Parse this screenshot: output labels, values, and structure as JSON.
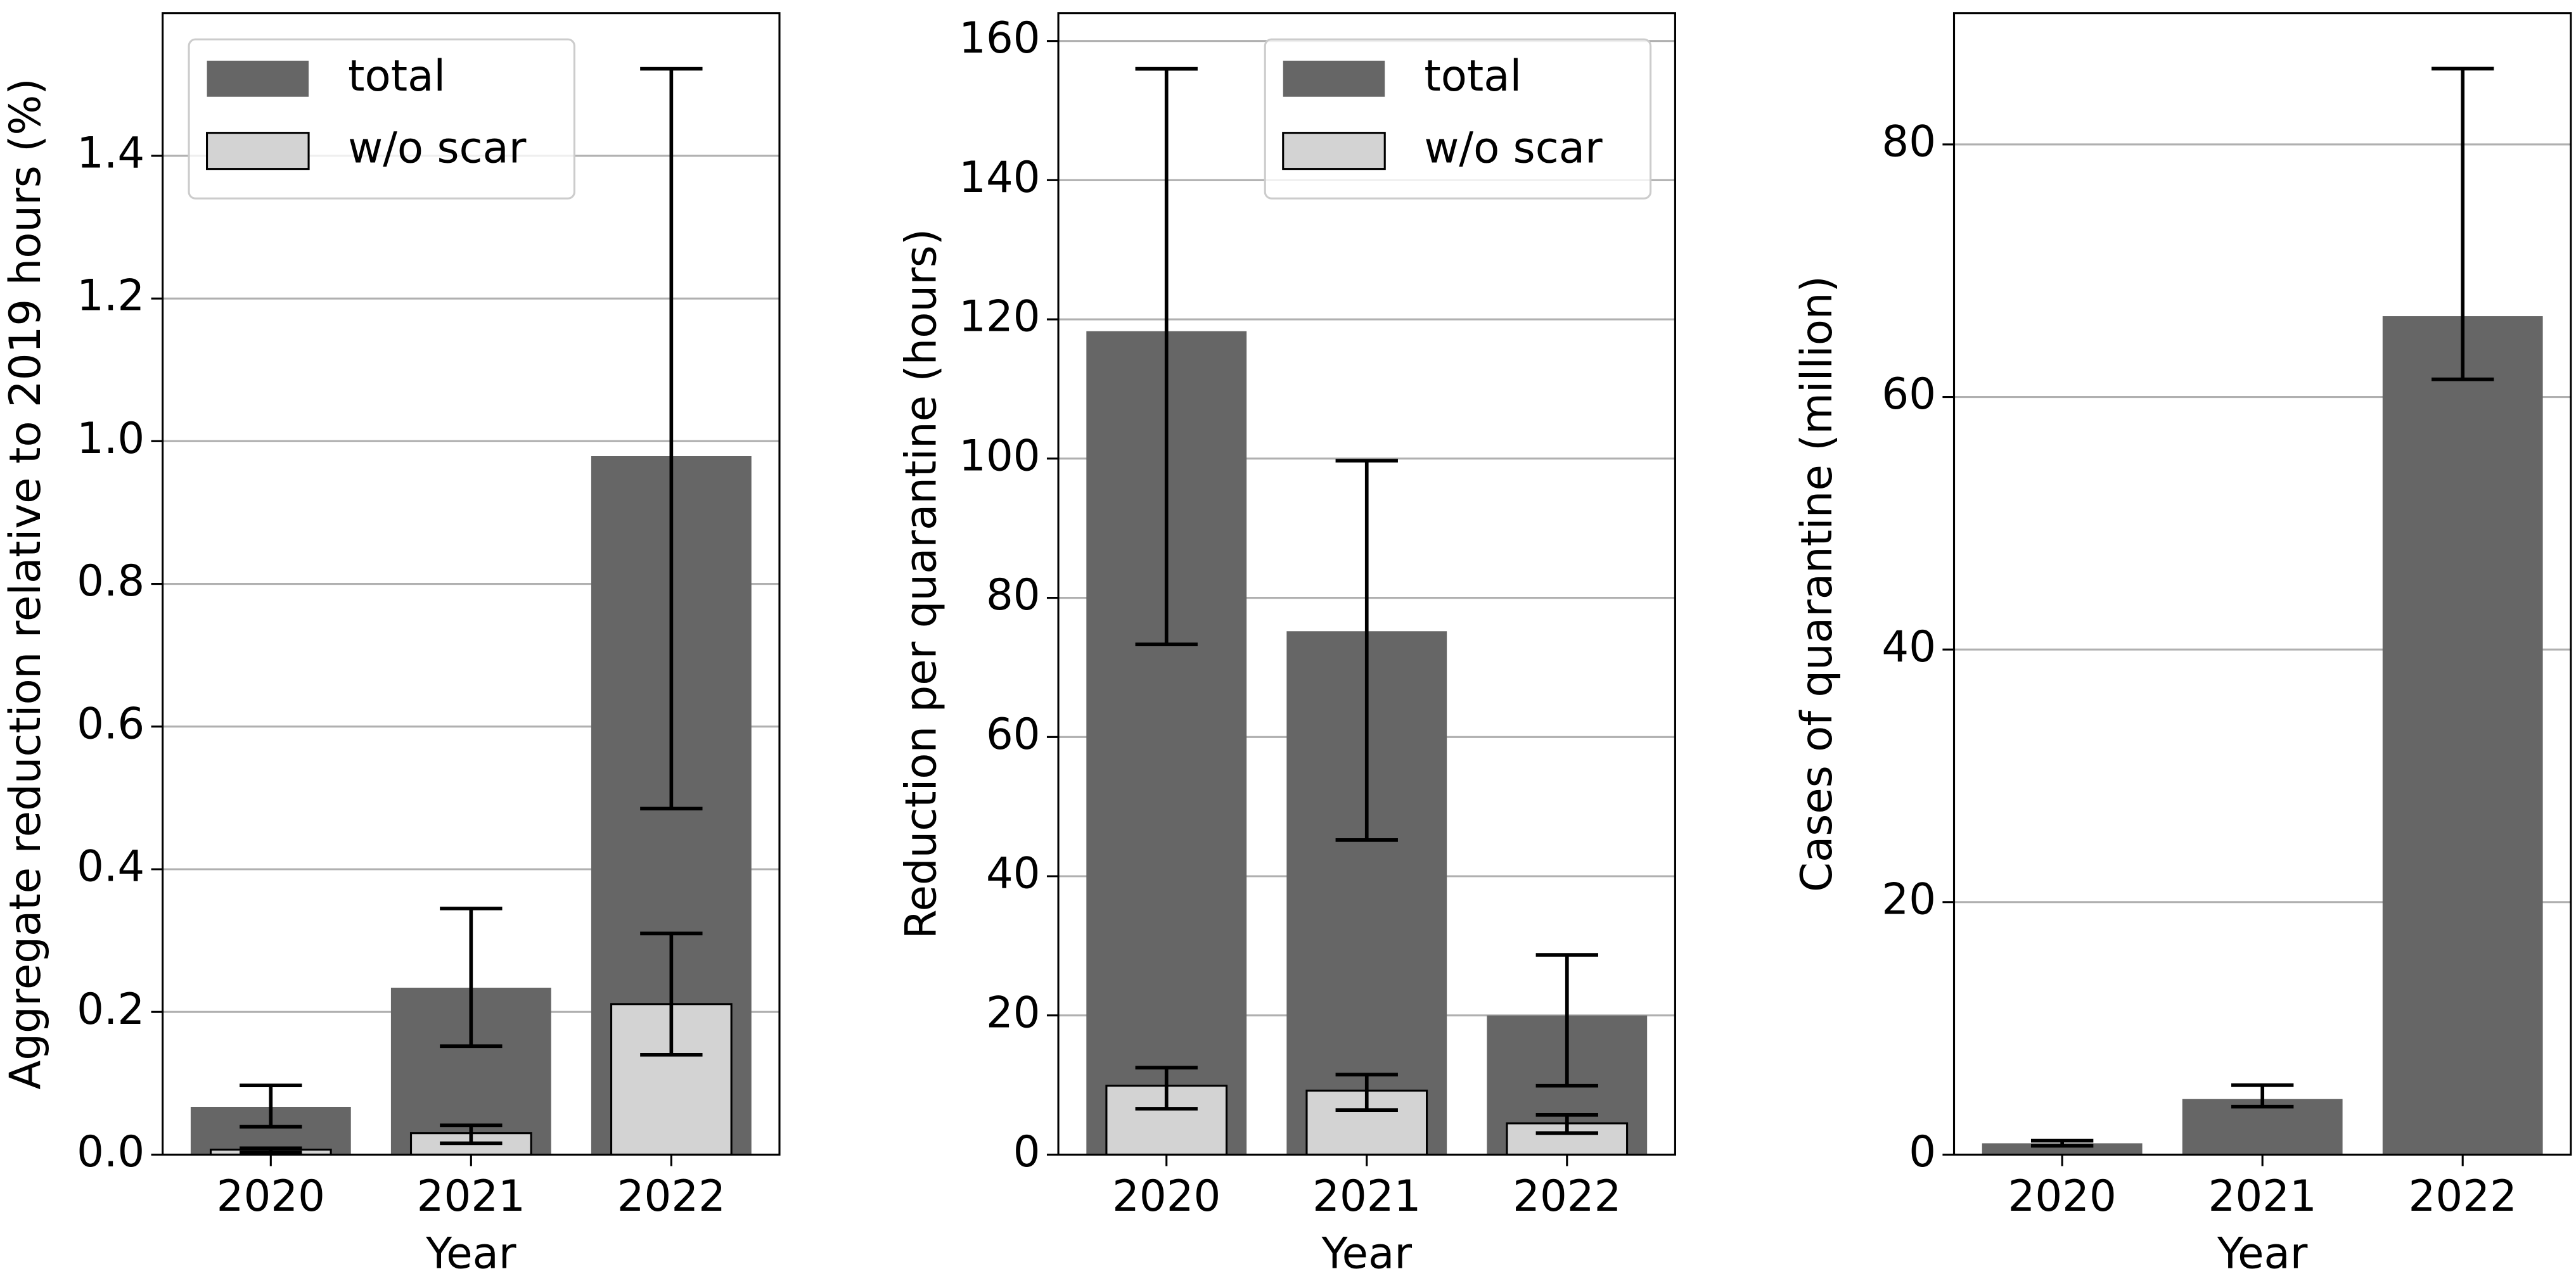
{
  "chart_data": [
    {
      "type": "bar",
      "x_label": "Year",
      "y_label": "Aggregate reduction relative to 2019 hours (%)",
      "categories": [
        "2020",
        "2021",
        "2022"
      ],
      "series": [
        {
          "name": "total",
          "color": "#666666",
          "values": [
            0.067,
            0.234,
            0.979
          ],
          "ci_low": [
            0.039,
            0.152,
            0.485
          ],
          "ci_high": [
            0.097,
            0.345,
            1.522
          ]
        },
        {
          "name": "w/o scar",
          "color": "#d3d3d3",
          "values": [
            0.007,
            0.03,
            0.211
          ],
          "ci_low": [
            0.003,
            0.016,
            0.14
          ],
          "ci_high": [
            0.009,
            0.041,
            0.31
          ]
        }
      ],
      "ylim": [
        0,
        1.6
      ],
      "yticks": [
        {
          "value": 0,
          "label": "0.0"
        },
        0.2,
        0.4,
        0.6,
        0.8,
        {
          "value": 1,
          "label": "1.0"
        },
        1.2,
        1.4
      ],
      "grid": true,
      "legend": "upper left"
    },
    {
      "type": "bar",
      "x_label": "Year",
      "y_label": "Reduction per quarantine (hours)",
      "categories": [
        "2020",
        "2021",
        "2022"
      ],
      "series": [
        {
          "name": "total",
          "color": "#666666",
          "values": [
            118.3,
            75.2,
            20.0
          ],
          "ci_low": [
            73.3,
            45.2,
            9.9
          ],
          "ci_high": [
            156,
            99.7,
            28.7
          ]
        },
        {
          "name": "w/o scar",
          "color": "#d3d3d3",
          "values": [
            9.9,
            9.2,
            4.5
          ],
          "ci_low": [
            6.6,
            6.4,
            3.1
          ],
          "ci_high": [
            12.5,
            11.5,
            5.7
          ]
        }
      ],
      "ylim": [
        0,
        164
      ],
      "yticks": [
        0,
        20,
        40,
        60,
        80,
        100,
        120,
        140,
        160
      ],
      "grid": true,
      "legend": "upper right"
    },
    {
      "type": "bar",
      "x_label": "Year",
      "y_label": "Cases of quarantine (million)",
      "categories": [
        "2020",
        "2021",
        "2022"
      ],
      "series": [
        {
          "color": "#666666",
          "values": [
            0.9,
            4.4,
            66.4
          ],
          "ci_low": [
            0.7,
            3.8,
            61.4
          ],
          "ci_high": [
            1.1,
            5.5,
            86.0
          ]
        }
      ],
      "ylim": [
        0,
        90.4
      ],
      "yticks": [
        0,
        20,
        40,
        60,
        80
      ],
      "grid": true
    }
  ]
}
